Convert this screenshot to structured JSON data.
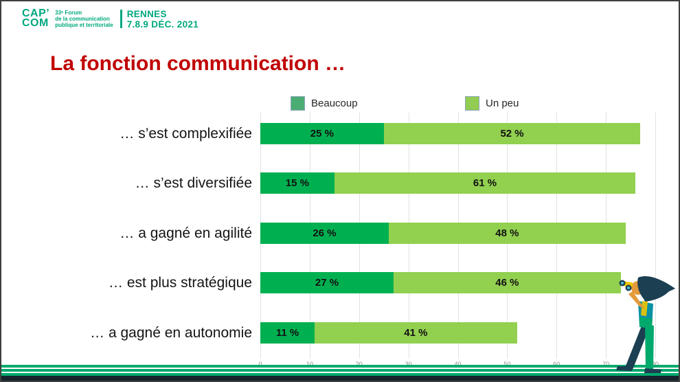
{
  "header": {
    "logo_line1": "CAP’",
    "logo_line2": "COM",
    "forum_lines": [
      "33ᵉ Forum",
      "de la communication",
      "publique et territoriale"
    ],
    "event_city": "RENNES",
    "event_dates": "7.8.9 DÉC. 2021"
  },
  "title": "La fonction communication …",
  "chart_data": {
    "type": "bar",
    "orientation": "horizontal-stacked",
    "title": "La fonction communication …",
    "categories": [
      "… s’est complexifiée",
      "… s’est diversifiée",
      "… a gagné en agilité",
      "… est plus stratégique",
      "… a gagné en autonomie"
    ],
    "series": [
      {
        "name": "Beaucoup",
        "color": "#00B050",
        "legend_swatch_color": "#4BAD73",
        "values": [
          25,
          15,
          26,
          27,
          11
        ]
      },
      {
        "name": "Un peu",
        "color": "#92D050",
        "legend_swatch_color": "#92CC52",
        "values": [
          52,
          61,
          48,
          46,
          41
        ]
      }
    ],
    "data_label_format": "{v} %",
    "xlim": [
      0,
      80
    ],
    "x_ticks": [
      0,
      10,
      20,
      30,
      40,
      50,
      60,
      70,
      80
    ],
    "grid": true,
    "legend_position": "top"
  },
  "colors": {
    "brand_green": "#00A87E",
    "title_red": "#C00000",
    "axis_gray": "#8a8a8a",
    "gridline": "#E2E2E2",
    "stripe_green": "#00A96C",
    "bottom_bar_navy": "#16222C"
  },
  "illustration": {
    "name": "woman-with-binoculars"
  }
}
